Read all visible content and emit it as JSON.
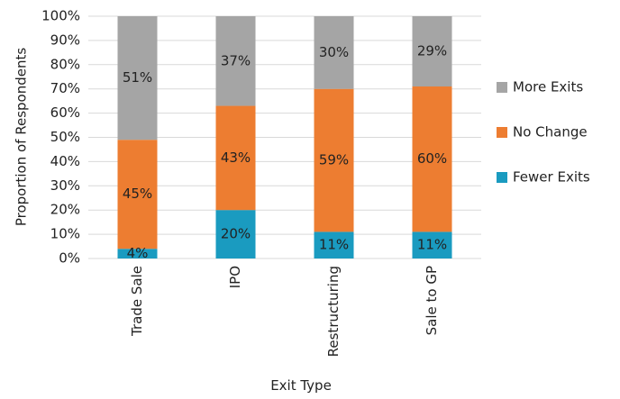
{
  "chart_data": {
    "type": "bar",
    "stacked": true,
    "categories": [
      "Trade Sale",
      "IPO",
      "Restructuring",
      "Sale to GP"
    ],
    "series": [
      {
        "name": "Fewer Exits",
        "values": [
          4,
          20,
          11,
          11
        ],
        "labels": [
          "4%",
          "20%",
          "11%",
          "11%"
        ],
        "color": "#1a9bc0"
      },
      {
        "name": "No Change",
        "values": [
          45,
          43,
          59,
          60
        ],
        "labels": [
          "45%",
          "43%",
          "59%",
          "60%"
        ],
        "color": "#ed7d31"
      },
      {
        "name": "More Exits",
        "values": [
          51,
          37,
          30,
          29
        ],
        "labels": [
          "51%",
          "37%",
          "30%",
          "29%"
        ],
        "color": "#a5a5a5"
      }
    ],
    "xlabel": "Exit Type",
    "ylabel": "Proportion of Respondents",
    "ylim": [
      0,
      100
    ],
    "yticks": [
      "0%",
      "10%",
      "20%",
      "30%",
      "40%",
      "50%",
      "60%",
      "70%",
      "80%",
      "90%",
      "100%"
    ],
    "grid": true,
    "legend_position": "right",
    "legend_order": [
      "More Exits",
      "No Change",
      "Fewer Exits"
    ]
  }
}
